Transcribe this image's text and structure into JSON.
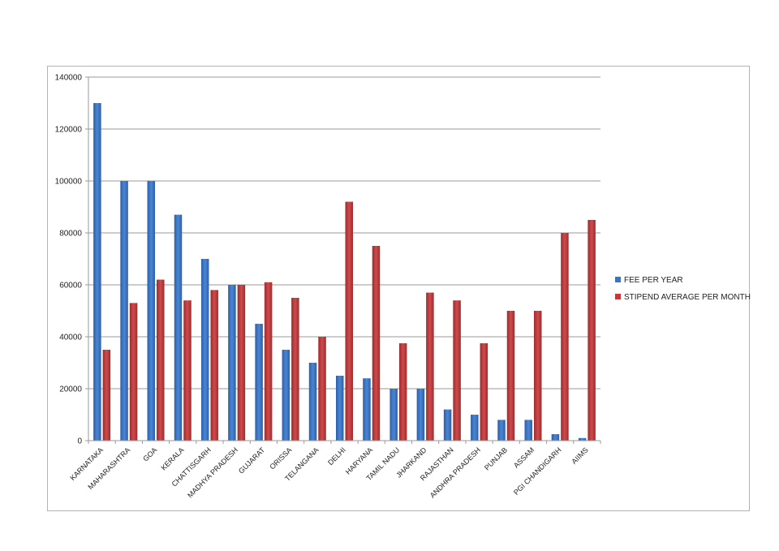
{
  "chart_data": {
    "type": "bar",
    "title": "",
    "xlabel": "",
    "ylabel": "",
    "ylim": [
      0,
      140000
    ],
    "yticks": [
      0,
      20000,
      40000,
      60000,
      80000,
      100000,
      120000,
      140000
    ],
    "grid": true,
    "legend_position": "right",
    "categories": [
      "KARNATAKA",
      "MAHARASHTRA",
      "GOA",
      "KERALA",
      "CHATTISGARH",
      "MADHYA PRADESH",
      "GUJARAT",
      "ORISSA",
      "TELANGANA",
      "DELHI",
      "HARYANA",
      "TAMIL NADU",
      "JHARKAND",
      "RAJASTHAN",
      "ANDHRA PRADESH",
      "PUNJAB",
      "ASSAM",
      "PGI CHANDIGARH",
      "AIIMS"
    ],
    "series": [
      {
        "name": "FEE PER YEAR",
        "color": "#3b74c4",
        "values": [
          130000,
          100000,
          100000,
          87000,
          70000,
          60000,
          45000,
          35000,
          30000,
          25000,
          24000,
          20000,
          20000,
          12000,
          10000,
          8000,
          8000,
          2500,
          1000
        ]
      },
      {
        "name": "STIPEND AVERAGE PER MONTH",
        "color": "#c0393b",
        "values": [
          35000,
          53000,
          62000,
          54000,
          58000,
          60000,
          61000,
          55000,
          40000,
          92000,
          75000,
          37500,
          57000,
          54000,
          37500,
          50000,
          50000,
          80000,
          85000
        ]
      }
    ]
  }
}
